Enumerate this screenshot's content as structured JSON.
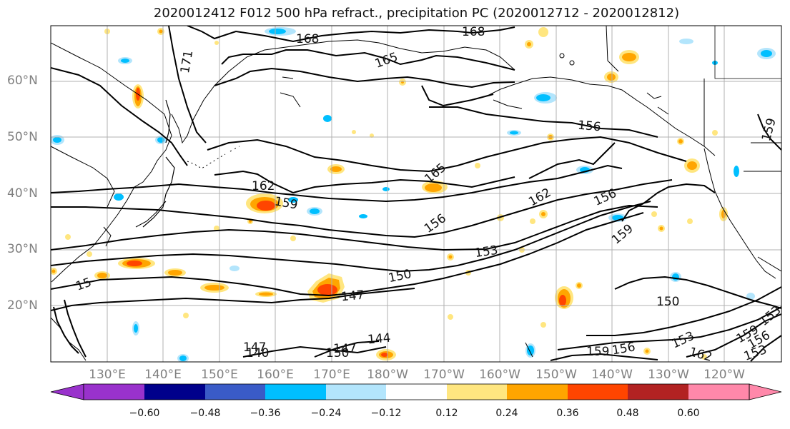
{
  "title": "2020012412 F012 500 hPa refract., precipitation PC (2020012712 - 2020012812)",
  "map": {
    "projection": "cylindrical",
    "region": "North Pacific",
    "lat_range": [
      10,
      70
    ],
    "lon_range": [
      "120°E",
      "116°W"
    ],
    "gridlines": true,
    "lat_labels": [
      "60°N",
      "50°N",
      "40°N",
      "30°N",
      "20°N"
    ],
    "lon_labels": [
      "130°E",
      "140°E",
      "150°E",
      "160°E",
      "170°E",
      "180°W",
      "170°W",
      "160°W",
      "150°W",
      "140°W",
      "130°W",
      "120°W"
    ]
  },
  "contours": {
    "field": "500 hPa refractivity",
    "color": "#000000",
    "labels": [
      "171",
      "168",
      "168",
      "165",
      "165",
      "162",
      "162",
      "159",
      "159",
      "159",
      "156",
      "156",
      "156",
      "153",
      "153",
      "150",
      "150",
      "147",
      "147",
      "147",
      "144",
      "140",
      "150",
      "153",
      "159",
      "156",
      "162",
      "159",
      "156",
      "153",
      "15"
    ]
  },
  "colorbar": {
    "extend": "both",
    "ticks": [
      "−0.60",
      "−0.48",
      "−0.36",
      "−0.24",
      "−0.12",
      "0.12",
      "0.24",
      "0.36",
      "0.48",
      "0.60"
    ],
    "colors": [
      "#9932cc",
      "#00008b",
      "#3a5bc7",
      "#00bfff",
      "#b3e5fc",
      "#ffffff",
      "#ffe680",
      "#ffa500",
      "#ff4500",
      "#b22222",
      "#ff88aa"
    ]
  }
}
